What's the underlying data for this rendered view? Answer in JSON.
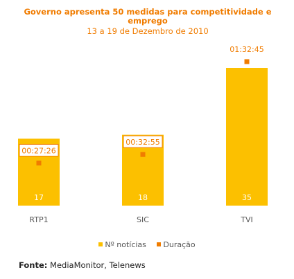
{
  "chart_data": {
    "type": "bar",
    "title": "Governo apresenta 50 medidas para competitividade e emprego",
    "subtitle": "13 a 19 de Dezembro de 2010",
    "categories": [
      "RTP1",
      "SIC",
      "TVI"
    ],
    "series": [
      {
        "name": "Nº notícias",
        "values": [
          17,
          18,
          35
        ],
        "color": "#fcc000"
      },
      {
        "name": "Duração",
        "values": [
          "00:27:26",
          "00:32:55",
          "01:32:45"
        ],
        "color": "#f07c00"
      }
    ],
    "ylim": [
      0,
      35
    ],
    "grid": false,
    "legend_position": "bottom"
  },
  "source": {
    "label": "Fonte:",
    "text": "MediaMonitor, Telenews"
  }
}
